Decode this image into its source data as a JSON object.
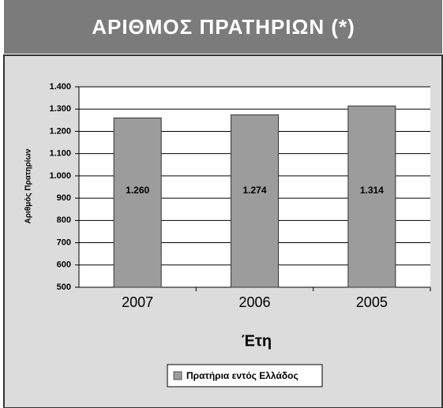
{
  "chart_data": {
    "type": "bar",
    "title": "ΑΡΙΘΜΟΣ ΠΡΑΤΗΡΙΩΝ (*)",
    "y_label": "Αριθμός Πρατηρίων",
    "x_label": "Έτη",
    "categories": [
      "2007",
      "2006",
      "2005"
    ],
    "series": [
      {
        "name": "Πρατήρια εντός Ελλάδος",
        "color": "#9c9c9c",
        "values": [
          1260,
          1274,
          1314
        ],
        "value_labels": [
          "1.260",
          "1.274",
          "1.314"
        ]
      }
    ],
    "ylim": [
      500,
      1400
    ],
    "yticks": [
      500,
      600,
      700,
      800,
      900,
      {
        "value": 1000,
        "label": "1.000"
      },
      {
        "value": 1100,
        "label": "1.100"
      },
      {
        "value": 1200,
        "label": "1.200"
      },
      {
        "value": 1300,
        "label": "1.300"
      },
      {
        "value": 1400,
        "label": "1.400"
      }
    ],
    "grid": true
  }
}
